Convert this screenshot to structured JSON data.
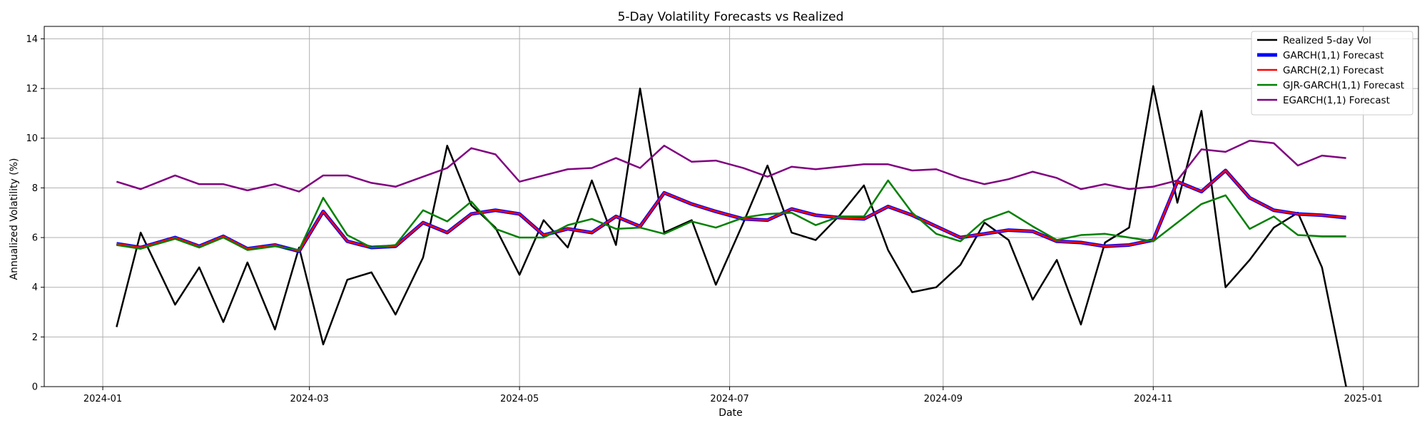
{
  "chart_data": {
    "type": "line",
    "title": "5-Day Volatility Forecasts vs Realized",
    "xlabel": "Date",
    "ylabel": "Annualized Volatility (%)",
    "ylim": [
      0,
      14.5
    ],
    "xlim": [
      "2023-12-15",
      "2025-01-17"
    ],
    "grid": true,
    "legend_position": "top-right",
    "x_ticks": [
      "2024-01-01",
      "2024-03-01",
      "2024-05-01",
      "2024-07-01",
      "2024-09-01",
      "2024-11-01",
      "2025-01-01"
    ],
    "x_tick_labels": [
      "2024-01",
      "2024-03",
      "2024-05",
      "2024-07",
      "2024-09",
      "2024-11",
      "2025-01"
    ],
    "y_ticks": [
      0,
      2,
      4,
      6,
      8,
      10,
      12,
      14
    ],
    "y_tick_labels": [
      "0",
      "2",
      "4",
      "6",
      "8",
      "10",
      "12",
      "14"
    ],
    "x": [
      "2024-01-05",
      "2024-01-12",
      "2024-01-22",
      "2024-01-29",
      "2024-02-05",
      "2024-02-12",
      "2024-02-20",
      "2024-02-27",
      "2024-03-05",
      "2024-03-12",
      "2024-03-19",
      "2024-03-26",
      "2024-04-03",
      "2024-04-10",
      "2024-04-17",
      "2024-04-24",
      "2024-05-01",
      "2024-05-08",
      "2024-05-15",
      "2024-05-22",
      "2024-05-29",
      "2024-06-05",
      "2024-06-12",
      "2024-06-20",
      "2024-06-27",
      "2024-07-05",
      "2024-07-12",
      "2024-07-19",
      "2024-07-26",
      "2024-08-02",
      "2024-08-09",
      "2024-08-16",
      "2024-08-23",
      "2024-08-30",
      "2024-09-06",
      "2024-09-13",
      "2024-09-20",
      "2024-09-27",
      "2024-10-04",
      "2024-10-11",
      "2024-10-18",
      "2024-10-25",
      "2024-11-01",
      "2024-11-08",
      "2024-11-15",
      "2024-11-22",
      "2024-11-29",
      "2024-12-06",
      "2024-12-13",
      "2024-12-20",
      "2024-12-27"
    ],
    "series": [
      {
        "name": "Realized 5-day Vol",
        "color": "#000000",
        "width": 2.5,
        "values": [
          2.4,
          6.2,
          3.3,
          4.8,
          2.6,
          5.0,
          2.3,
          5.6,
          1.7,
          4.3,
          4.6,
          2.9,
          5.2,
          9.7,
          7.3,
          6.4,
          4.5,
          6.7,
          5.6,
          8.3,
          5.7,
          12.0,
          6.2,
          6.7,
          4.1,
          6.6,
          8.9,
          6.2,
          5.9,
          6.9,
          8.1,
          5.5,
          3.8,
          4.0,
          4.9,
          6.6,
          5.9,
          3.5,
          5.1,
          2.5,
          5.8,
          6.4,
          12.1,
          7.4,
          11.1,
          4.0,
          5.1,
          6.4,
          7.0,
          4.8,
          0.0
        ]
      },
      {
        "name": "GARCH(1,1) Forecast",
        "color": "#0000ff",
        "width": 5,
        "values": [
          5.75,
          5.6,
          6.0,
          5.65,
          6.05,
          5.55,
          5.7,
          5.45,
          7.05,
          5.85,
          5.6,
          5.65,
          6.6,
          6.2,
          6.95,
          7.1,
          6.95,
          6.1,
          6.35,
          6.2,
          6.85,
          6.45,
          7.8,
          7.35,
          7.05,
          6.75,
          6.7,
          7.15,
          6.9,
          6.8,
          6.75,
          7.25,
          6.9,
          6.45,
          6.0,
          6.15,
          6.3,
          6.25,
          5.85,
          5.8,
          5.65,
          5.7,
          5.9,
          8.25,
          7.85,
          8.7,
          7.6,
          7.1,
          6.95,
          6.9,
          6.8
        ]
      },
      {
        "name": "GARCH(2,1) Forecast",
        "color": "#ff0000",
        "width": 2.5,
        "values": [
          5.75,
          5.6,
          6.0,
          5.65,
          6.05,
          5.55,
          5.7,
          5.45,
          7.05,
          5.85,
          5.6,
          5.65,
          6.6,
          6.2,
          6.95,
          7.1,
          6.95,
          6.1,
          6.35,
          6.2,
          6.85,
          6.45,
          7.8,
          7.35,
          7.05,
          6.75,
          6.7,
          7.15,
          6.9,
          6.8,
          6.75,
          7.25,
          6.9,
          6.45,
          6.0,
          6.15,
          6.3,
          6.25,
          5.85,
          5.8,
          5.65,
          5.7,
          5.9,
          8.25,
          7.85,
          8.7,
          7.6,
          7.1,
          6.95,
          6.9,
          6.8
        ]
      },
      {
        "name": "GJR-GARCH(1,1) Forecast",
        "color": "#008000",
        "width": 2.5,
        "values": [
          5.7,
          5.55,
          5.95,
          5.6,
          6.0,
          5.5,
          5.65,
          5.5,
          7.6,
          6.1,
          5.6,
          5.7,
          7.1,
          6.65,
          7.45,
          6.35,
          6.0,
          6.0,
          6.5,
          6.75,
          6.35,
          6.4,
          6.15,
          6.65,
          6.4,
          6.8,
          6.95,
          7.0,
          6.5,
          6.85,
          6.85,
          8.3,
          7.0,
          6.15,
          5.85,
          6.7,
          7.05,
          6.45,
          5.9,
          6.1,
          6.15,
          6.0,
          5.85,
          6.6,
          7.35,
          7.7,
          6.35,
          6.85,
          6.1,
          6.05,
          6.05
        ]
      },
      {
        "name": "EGARCH(1,1) Forecast",
        "color": "#800080",
        "width": 2.5,
        "values": [
          8.25,
          7.95,
          8.5,
          8.15,
          8.15,
          7.9,
          8.15,
          7.85,
          8.5,
          8.5,
          8.2,
          8.05,
          8.45,
          8.8,
          9.6,
          9.35,
          8.25,
          8.5,
          8.75,
          8.8,
          9.2,
          8.8,
          9.7,
          9.05,
          9.1,
          8.8,
          8.45,
          8.85,
          8.75,
          8.85,
          8.95,
          8.95,
          8.7,
          8.75,
          8.4,
          8.15,
          8.35,
          8.65,
          8.4,
          7.95,
          8.15,
          7.95,
          8.05,
          8.3,
          9.55,
          9.45,
          9.9,
          9.8,
          8.9,
          9.3,
          9.2
        ]
      }
    ]
  }
}
